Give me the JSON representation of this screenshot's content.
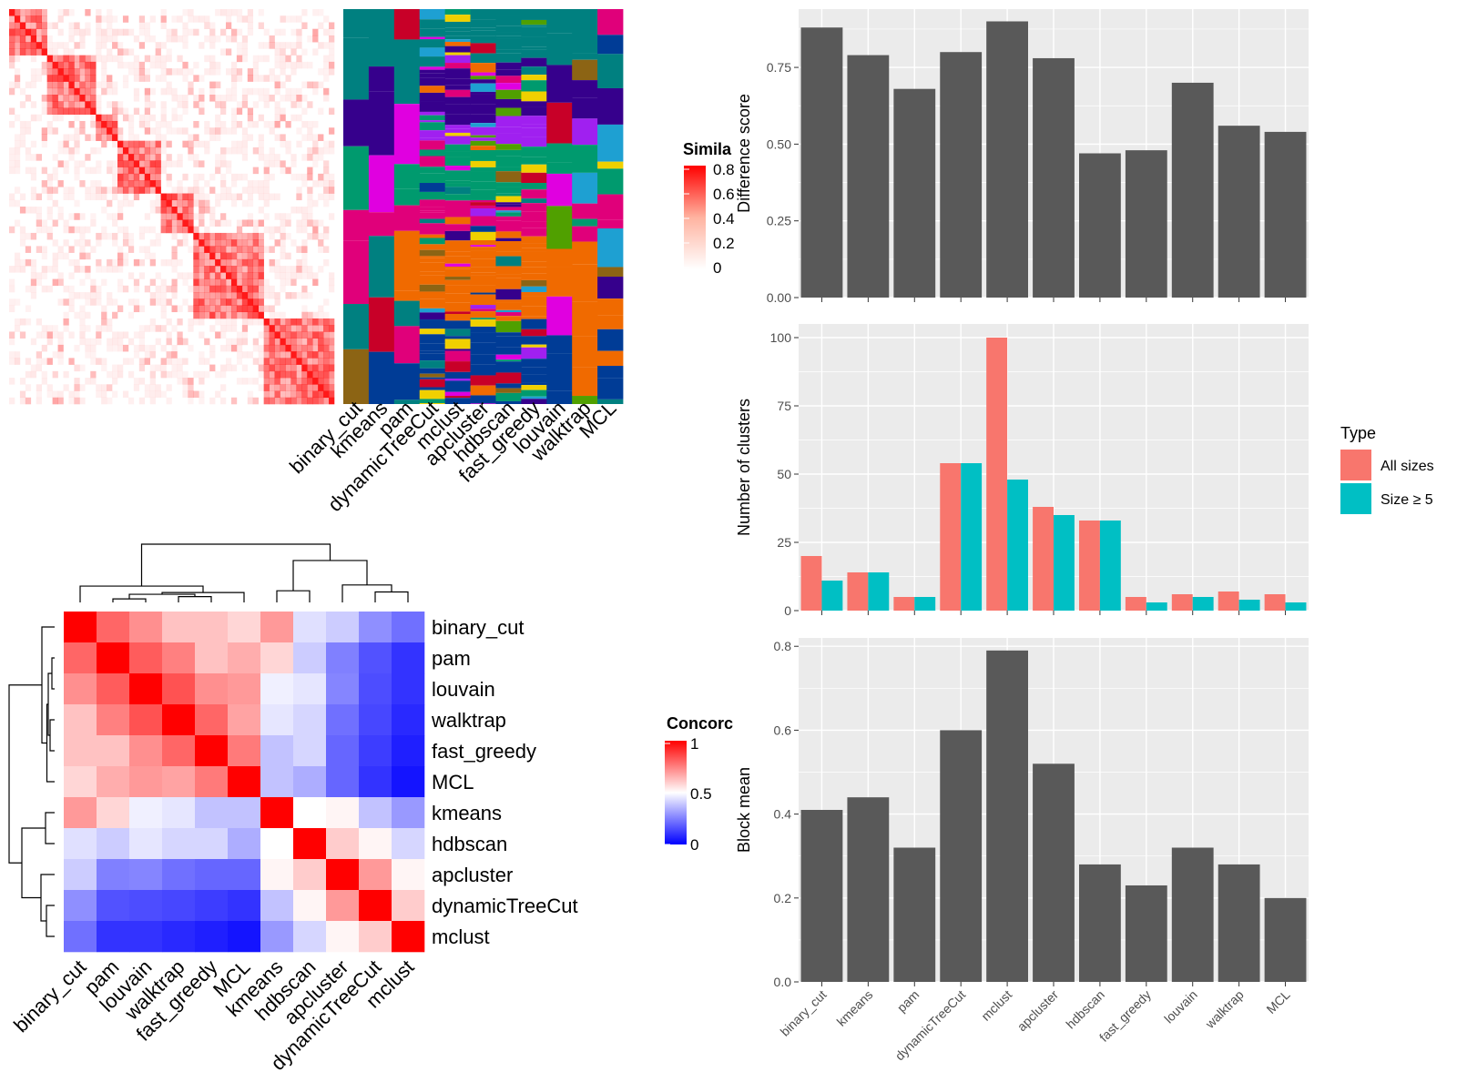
{
  "methods": [
    "binary_cut",
    "kmeans",
    "pam",
    "dynamicTreeCut",
    "mclust",
    "apcluster",
    "hdbscan",
    "fast_greedy",
    "louvain",
    "walktrap",
    "MCL"
  ],
  "colors": {
    "panel_bg": "#ebebeb",
    "grid": "#ffffff",
    "bar": "#595959",
    "all_sizes": "#f8766d",
    "size_ge5": "#00bfc4",
    "sim_high": "#ff0000",
    "conc_low": "#0000ff"
  },
  "similarity_legend": {
    "title": "Simila",
    "ticks": [
      "0.8",
      "0.6",
      "0.4",
      "0.2",
      "0"
    ]
  },
  "concordance_legend": {
    "title": "Concorc",
    "ticks": [
      "1",
      "0.5",
      "0"
    ]
  },
  "type_legend": {
    "title": "Type",
    "all_sizes": "All sizes",
    "size_ge5": "Size ≥ 5"
  },
  "concordance": {
    "order": [
      "binary_cut",
      "pam",
      "louvain",
      "walktrap",
      "fast_greedy",
      "MCL",
      "kmeans",
      "hdbscan",
      "apcluster",
      "dynamicTreeCut",
      "mclust"
    ]
  },
  "chart_data": [
    {
      "type": "bar",
      "categories": [
        "binary_cut",
        "kmeans",
        "pam",
        "dynamicTreeCut",
        "mclust",
        "apcluster",
        "hdbscan",
        "fast_greedy",
        "louvain",
        "walktrap",
        "MCL"
      ],
      "values": [
        0.88,
        0.79,
        0.68,
        0.8,
        0.9,
        0.78,
        0.47,
        0.48,
        0.7,
        0.56,
        0.54
      ],
      "ylabel": "Difference score",
      "ylim": [
        0,
        0.94
      ],
      "yticks": [
        "0.00",
        "0.25",
        "0.50",
        "0.75"
      ]
    },
    {
      "type": "bar",
      "categories": [
        "binary_cut",
        "kmeans",
        "pam",
        "dynamicTreeCut",
        "mclust",
        "apcluster",
        "hdbscan",
        "fast_greedy",
        "louvain",
        "walktrap",
        "MCL"
      ],
      "series": [
        {
          "name": "All sizes",
          "values": [
            20,
            14,
            5,
            54,
            100,
            38,
            33,
            5,
            6,
            7,
            6
          ]
        },
        {
          "name": "Size ≥ 5",
          "values": [
            11,
            14,
            5,
            54,
            48,
            35,
            33,
            3,
            5,
            4,
            3
          ]
        }
      ],
      "ylabel": "Number of clusters",
      "ylim": [
        0,
        105
      ],
      "yticks": [
        "0",
        "25",
        "50",
        "75",
        "100"
      ]
    },
    {
      "type": "bar",
      "categories": [
        "binary_cut",
        "kmeans",
        "pam",
        "dynamicTreeCut",
        "mclust",
        "apcluster",
        "hdbscan",
        "fast_greedy",
        "louvain",
        "walktrap",
        "MCL"
      ],
      "values": [
        0.41,
        0.44,
        0.32,
        0.6,
        0.79,
        0.52,
        0.28,
        0.23,
        0.32,
        0.28,
        0.2
      ],
      "ylabel": "Block mean",
      "ylim": [
        0,
        0.82
      ],
      "yticks": [
        "0.0",
        "0.2",
        "0.4",
        "0.6",
        "0.8"
      ]
    },
    {
      "type": "heatmap",
      "rows": [
        "binary_cut",
        "pam",
        "louvain",
        "walktrap",
        "fast_greedy",
        "MCL",
        "kmeans",
        "hdbscan",
        "apcluster",
        "dynamicTreeCut",
        "mclust"
      ],
      "columns": [
        "binary_cut",
        "pam",
        "louvain",
        "walktrap",
        "fast_greedy",
        "MCL",
        "kmeans",
        "hdbscan",
        "apcluster",
        "dynamicTreeCut",
        "mclust"
      ],
      "values": [
        [
          1.0,
          0.8,
          0.72,
          0.62,
          0.62,
          0.58,
          0.7,
          0.44,
          0.4,
          0.28,
          0.22
        ],
        [
          0.8,
          1.0,
          0.82,
          0.75,
          0.62,
          0.66,
          0.58,
          0.4,
          0.25,
          0.16,
          0.1
        ],
        [
          0.72,
          0.82,
          1.0,
          0.84,
          0.72,
          0.7,
          0.47,
          0.45,
          0.26,
          0.15,
          0.1
        ],
        [
          0.62,
          0.75,
          0.84,
          1.0,
          0.8,
          0.68,
          0.45,
          0.42,
          0.22,
          0.14,
          0.08
        ],
        [
          0.62,
          0.62,
          0.72,
          0.8,
          1.0,
          0.76,
          0.38,
          0.42,
          0.2,
          0.12,
          0.06
        ],
        [
          0.58,
          0.66,
          0.7,
          0.68,
          0.76,
          1.0,
          0.38,
          0.34,
          0.2,
          0.1,
          0.04
        ],
        [
          0.7,
          0.58,
          0.47,
          0.45,
          0.38,
          0.38,
          1.0,
          0.5,
          0.52,
          0.38,
          0.3
        ],
        [
          0.44,
          0.4,
          0.45,
          0.42,
          0.42,
          0.34,
          0.5,
          1.0,
          0.6,
          0.52,
          0.42
        ],
        [
          0.4,
          0.25,
          0.26,
          0.22,
          0.2,
          0.2,
          0.52,
          0.6,
          1.0,
          0.7,
          0.52
        ],
        [
          0.28,
          0.16,
          0.15,
          0.14,
          0.12,
          0.1,
          0.38,
          0.52,
          0.7,
          1.0,
          0.6
        ],
        [
          0.22,
          0.1,
          0.1,
          0.08,
          0.06,
          0.04,
          0.3,
          0.42,
          0.52,
          0.6,
          1.0
        ]
      ]
    }
  ]
}
